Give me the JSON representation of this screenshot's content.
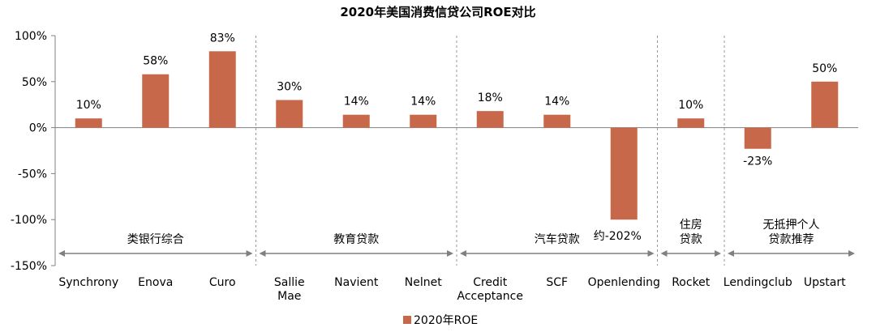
{
  "chart_data": {
    "type": "bar",
    "title": "2020年美国消费信贷公司ROE对比",
    "categories": [
      [
        "Synchrony"
      ],
      [
        "Enova"
      ],
      [
        "Curo"
      ],
      [
        "Sallie",
        "Mae"
      ],
      [
        "Navient"
      ],
      [
        "Nelnet"
      ],
      [
        "Credit",
        "Acceptance"
      ],
      [
        "SCF"
      ],
      [
        "Openlending"
      ],
      [
        "Rocket"
      ],
      [
        "Lendingclub"
      ],
      [
        "Upstart"
      ]
    ],
    "series": [
      {
        "name": "2020年ROE",
        "values": [
          10,
          58,
          83,
          30,
          14,
          14,
          18,
          14,
          -100,
          10,
          -23,
          50
        ],
        "data_labels": [
          "10%",
          "58%",
          "83%",
          "30%",
          "14%",
          "14%",
          "18%",
          "14%",
          "约-202%",
          "10%",
          "-23%",
          "50%"
        ]
      }
    ],
    "ylim": [
      -150,
      100
    ],
    "yticks": [
      100,
      50,
      0,
      -50,
      -100,
      -150
    ],
    "ytick_labels": [
      "100%",
      "50%",
      "0%",
      "-50%",
      "-100%",
      "-150%"
    ],
    "groups": [
      {
        "lines": [
          "类银行综合"
        ],
        "start": 0,
        "end": 2
      },
      {
        "lines": [
          "教育贷款"
        ],
        "start": 3,
        "end": 5
      },
      {
        "lines": [
          "汽车贷款"
        ],
        "start": 6,
        "end": 8
      },
      {
        "lines": [
          "住房",
          "贷款"
        ],
        "start": 9,
        "end": 9
      },
      {
        "lines": [
          "无抵押个人",
          "贷款推荐"
        ],
        "start": 10,
        "end": 11
      }
    ],
    "legend_position": "bottom",
    "colors": {
      "bar": "#C8684A",
      "axis": "#808080",
      "divider": "#999999",
      "arrow": "#808080"
    }
  }
}
